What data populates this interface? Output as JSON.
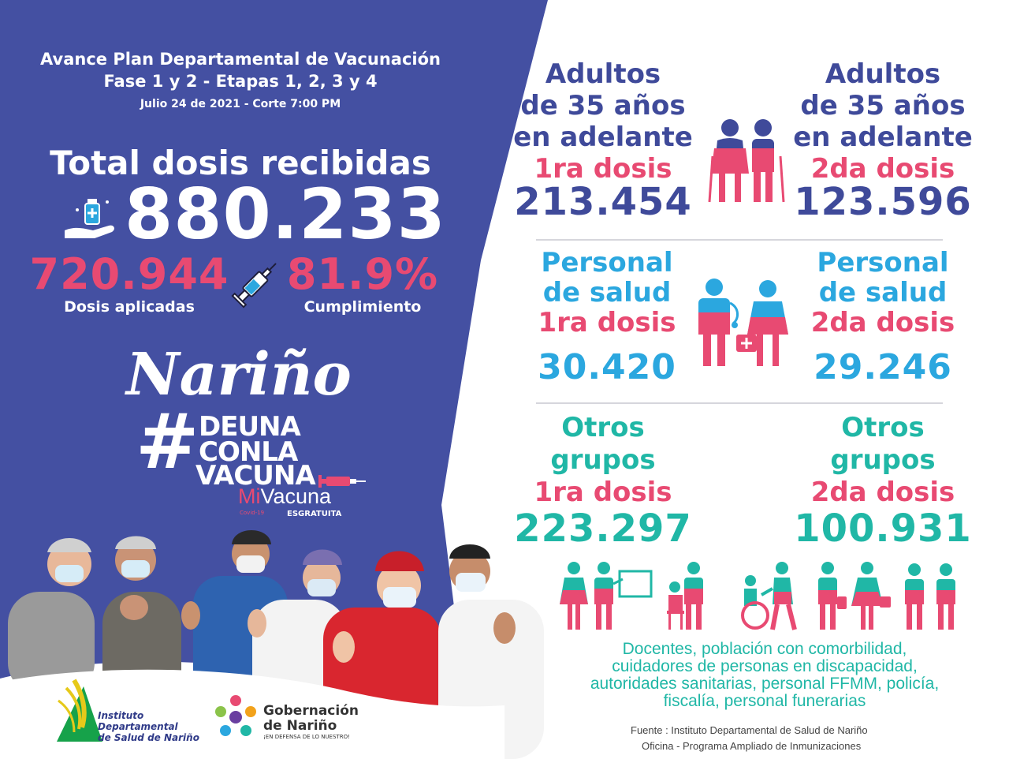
{
  "header": {
    "title_line1": "Avance Plan Departamental de Vacunación",
    "title_line2": "Fase 1 y 2 - Etapas 1, 2, 3 y 4",
    "date_line": "Julio 24 de 2021 - Corte 7:00 PM"
  },
  "totals": {
    "received_label": "Total dosis recibidas",
    "received_value": "880.233",
    "applied_value": "720.944",
    "applied_label": "Dosis aplicadas",
    "compliance_value": "81.9%",
    "compliance_label": "Cumplimiento"
  },
  "campaign": {
    "region": "Nariño",
    "hashtag_symbol": "#",
    "hashtag_line1": "DEUNA",
    "hashtag_line2": "CONLA",
    "hashtag_line3": "VACUNA",
    "mivacuna_mi": "Mi",
    "mivacuna_vacuna": "Vacuna",
    "mivacuna_es": "ES",
    "mivacuna_gratuita": "GRATUITA",
    "mivacuna_covid": "Covid-19"
  },
  "adults": {
    "first": {
      "line1": "Adultos",
      "line2": "de 35 años",
      "line3": "en adelante",
      "dose": "1ra dosis",
      "value": "213.454"
    },
    "second": {
      "line1": "Adultos",
      "line2": "de 35 años",
      "line3": "en adelante",
      "dose": "2da dosis",
      "value": "123.596"
    }
  },
  "health": {
    "first": {
      "line1": "Personal",
      "line2": "de salud",
      "dose": "1ra dosis",
      "value": "30.420"
    },
    "second": {
      "line1": "Personal",
      "line2": "de salud",
      "dose": "2da dosis",
      "value": "29.246"
    }
  },
  "others": {
    "first": {
      "line1": "Otros",
      "line2": "grupos",
      "dose": "1ra dosis",
      "value": "223.297"
    },
    "second": {
      "line1": "Otros",
      "line2": "grupos",
      "dose": "2da dosis",
      "value": "100.931"
    },
    "description_line1": "Docentes, población con comorbilidad,",
    "description_line2": "cuidadores de personas en discapacidad,",
    "description_line3": "autoridades sanitarias, personal FFMM, policía,",
    "description_line4": "fiscalía, personal funerarias"
  },
  "logos": {
    "ids_line1": "Instituto",
    "ids_line2": "Departamental",
    "ids_line3": "de Salud de Nariño",
    "gob_line1": "Gobernación",
    "gob_line2": "de Nariño",
    "gob_tagline": "¡EN DEFENSA DE LO NUESTRO!"
  },
  "footer": {
    "source_line1": "Fuente : Instituto Departamental de Salud de Nariño",
    "source_line2": "Oficina - Programa Ampliado de Inmunizaciones"
  },
  "colors": {
    "navy": "#3f4a9a",
    "pink": "#e84a72",
    "cyan": "#2ba7df",
    "teal": "#20b7a6"
  }
}
